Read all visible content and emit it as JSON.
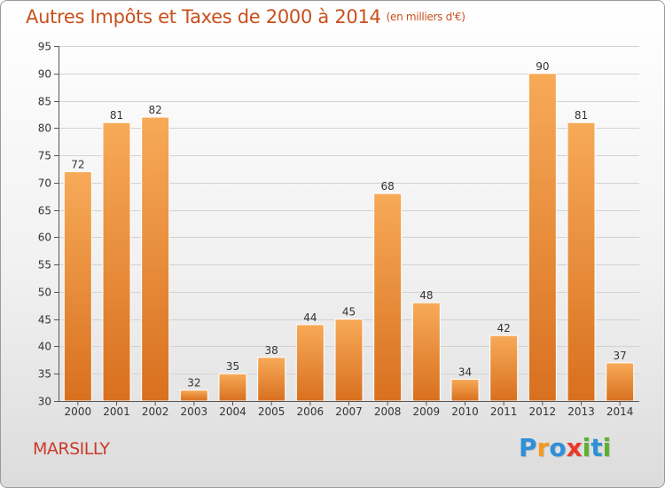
{
  "title": "Autres Impôts et Taxes de 2000 à 2014",
  "unit": "(en milliers d'€)",
  "commune": "MARSILLY",
  "logo": {
    "letters": [
      "P",
      "r",
      "o",
      "x",
      "i",
      "t",
      "i"
    ],
    "colors": [
      "#2f8fd8",
      "#f39a1e",
      "#2f8fd8",
      "#e8392a",
      "#5bb030",
      "#2f8fd8",
      "#5bb030"
    ]
  },
  "colors": {
    "title": "#c8501c",
    "bar_top": "#f7aa58",
    "bar_bottom": "#d8701f",
    "commune": "#c83c28"
  },
  "chart_data": {
    "type": "bar",
    "categories": [
      "2000",
      "2001",
      "2002",
      "2003",
      "2004",
      "2005",
      "2006",
      "2007",
      "2008",
      "2009",
      "2010",
      "2011",
      "2012",
      "2013",
      "2014"
    ],
    "values": [
      72,
      81,
      82,
      32,
      35,
      38,
      44,
      45,
      68,
      48,
      34,
      42,
      90,
      81,
      37
    ],
    "ylim": [
      30,
      95
    ],
    "yticks": [
      30,
      35,
      40,
      45,
      50,
      55,
      60,
      65,
      70,
      75,
      80,
      85,
      90,
      95
    ],
    "grid": true,
    "data_labels": true
  }
}
